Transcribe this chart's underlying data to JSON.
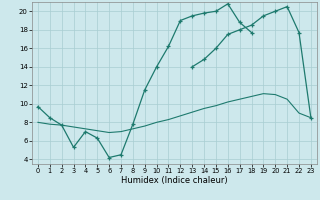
{
  "background_color": "#cde8ec",
  "line_color": "#1e7a6e",
  "xlabel": "Humidex (Indice chaleur)",
  "xlim": [
    -0.5,
    23.5
  ],
  "ylim": [
    3.5,
    21.0
  ],
  "yticks": [
    4,
    6,
    8,
    10,
    12,
    14,
    16,
    18,
    20
  ],
  "xticks": [
    0,
    1,
    2,
    3,
    4,
    5,
    6,
    7,
    8,
    9,
    10,
    11,
    12,
    13,
    14,
    15,
    16,
    17,
    18,
    19,
    20,
    21,
    22,
    23
  ],
  "s1_x": [
    0,
    1,
    2,
    3,
    4,
    5,
    6,
    7,
    8,
    9,
    10,
    11,
    12,
    13,
    14,
    15,
    16,
    17,
    18
  ],
  "s1_y": [
    9.7,
    8.5,
    7.7,
    5.3,
    7.0,
    6.3,
    4.2,
    4.5,
    7.8,
    11.5,
    14.0,
    16.2,
    19.0,
    19.5,
    19.8,
    20.0,
    20.8,
    18.8,
    17.7
  ],
  "s2_x": [
    13,
    14,
    15,
    16,
    17,
    18,
    19,
    20,
    21,
    22,
    23
  ],
  "s2_y": [
    14.0,
    14.8,
    16.0,
    17.5,
    18.0,
    18.5,
    19.5,
    20.0,
    20.5,
    17.7,
    8.5
  ],
  "s3_x": [
    0,
    1,
    2,
    3,
    4,
    5,
    6,
    7,
    8,
    9,
    10,
    11,
    12,
    13,
    14,
    15,
    16,
    17,
    18,
    19,
    20,
    21,
    22,
    23
  ],
  "s3_y": [
    8.0,
    7.8,
    7.7,
    7.5,
    7.3,
    7.1,
    6.9,
    7.0,
    7.3,
    7.6,
    8.0,
    8.3,
    8.7,
    9.1,
    9.5,
    9.8,
    10.2,
    10.5,
    10.8,
    11.1,
    11.0,
    10.5,
    9.0,
    8.5
  ]
}
